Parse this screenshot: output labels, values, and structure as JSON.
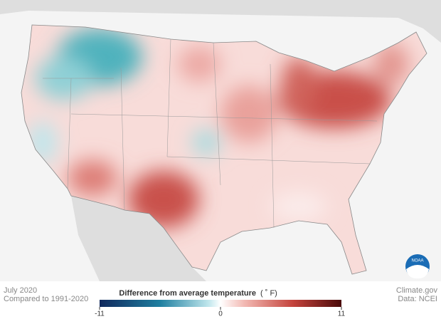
{
  "header": {
    "date": "July 2020",
    "baseline": "Compared to 1991-2020"
  },
  "legend": {
    "title": "Difference from average temperature",
    "unit": "( ˚ F)",
    "range": [
      -11,
      11
    ],
    "ticks": [
      -11,
      0,
      11
    ]
  },
  "credits": {
    "site": "Climate.gov",
    "source": "Data: NCEI",
    "logo": "NOAA"
  }
}
